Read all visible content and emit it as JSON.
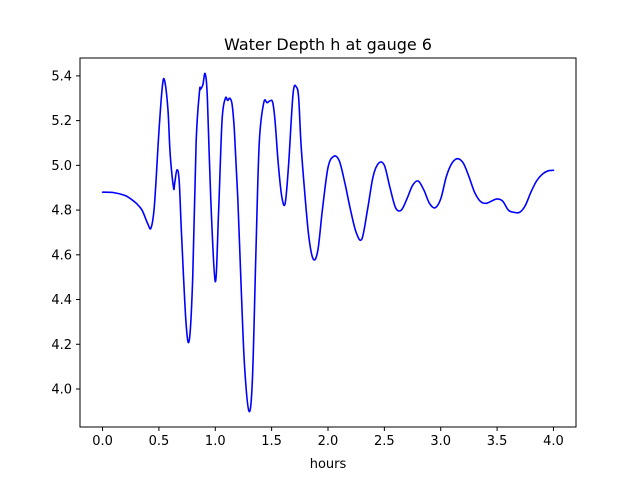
{
  "chart_data": {
    "type": "line",
    "title": "Water Depth h at gauge 6",
    "xlabel": "hours",
    "ylabel": "",
    "xlim": [
      -0.2,
      4.2
    ],
    "ylim": [
      3.83,
      5.48
    ],
    "xticks": [
      0.0,
      0.5,
      1.0,
      1.5,
      2.0,
      2.5,
      3.0,
      3.5,
      4.0
    ],
    "xtick_labels": [
      "0.0",
      "0.5",
      "1.0",
      "1.5",
      "2.0",
      "2.5",
      "3.0",
      "3.5",
      "4.0"
    ],
    "yticks": [
      4.0,
      4.2,
      4.4,
      4.6,
      4.8,
      5.0,
      5.2,
      5.4
    ],
    "ytick_labels": [
      "4.0",
      "4.2",
      "4.4",
      "4.6",
      "4.8",
      "5.0",
      "5.2",
      "5.4"
    ],
    "grid": false,
    "series": [
      {
        "color": "#0000ff",
        "x": [
          0.0,
          0.1,
          0.2,
          0.25,
          0.3,
          0.35,
          0.4,
          0.43,
          0.46,
          0.5,
          0.53,
          0.55,
          0.58,
          0.6,
          0.63,
          0.64,
          0.66,
          0.68,
          0.7,
          0.74,
          0.77,
          0.8,
          0.83,
          0.86,
          0.87,
          0.89,
          0.91,
          0.93,
          0.96,
          1.0,
          1.03,
          1.06,
          1.09,
          1.11,
          1.13,
          1.15,
          1.17,
          1.2,
          1.23,
          1.26,
          1.3,
          1.33,
          1.36,
          1.39,
          1.43,
          1.46,
          1.49,
          1.51,
          1.53,
          1.56,
          1.59,
          1.62,
          1.65,
          1.69,
          1.72,
          1.74,
          1.76,
          1.79,
          1.83,
          1.87,
          1.91,
          1.95,
          2.0,
          2.05,
          2.1,
          2.15,
          2.2,
          2.25,
          2.3,
          2.35,
          2.4,
          2.45,
          2.5,
          2.55,
          2.6,
          2.65,
          2.7,
          2.75,
          2.8,
          2.85,
          2.9,
          2.95,
          3.0,
          3.05,
          3.1,
          3.15,
          3.2,
          3.25,
          3.3,
          3.35,
          3.4,
          3.45,
          3.5,
          3.55,
          3.6,
          3.65,
          3.7,
          3.75,
          3.8,
          3.85,
          3.9,
          3.95,
          4.0
        ],
        "y": [
          4.88,
          4.878,
          4.865,
          4.85,
          4.83,
          4.8,
          4.74,
          4.72,
          4.82,
          5.15,
          5.35,
          5.38,
          5.25,
          5.05,
          4.9,
          4.92,
          4.98,
          4.93,
          4.7,
          4.3,
          4.22,
          4.5,
          5.1,
          5.33,
          5.34,
          5.36,
          5.41,
          5.3,
          4.85,
          4.48,
          4.8,
          5.2,
          5.3,
          5.29,
          5.3,
          5.27,
          5.15,
          4.85,
          4.45,
          4.1,
          3.9,
          4.05,
          4.6,
          5.1,
          5.28,
          5.28,
          5.29,
          5.28,
          5.2,
          5.0,
          4.86,
          4.83,
          5.0,
          5.32,
          5.35,
          5.3,
          5.1,
          4.9,
          4.68,
          4.58,
          4.62,
          4.8,
          4.99,
          5.04,
          5.02,
          4.92,
          4.8,
          4.7,
          4.67,
          4.8,
          4.95,
          5.01,
          5.0,
          4.9,
          4.81,
          4.8,
          4.85,
          4.91,
          4.93,
          4.89,
          4.83,
          4.81,
          4.85,
          4.95,
          5.01,
          5.03,
          5.01,
          4.95,
          4.88,
          4.84,
          4.83,
          4.84,
          4.85,
          4.84,
          4.8,
          4.79,
          4.79,
          4.82,
          4.88,
          4.93,
          4.96,
          4.975,
          4.978
        ]
      }
    ]
  }
}
